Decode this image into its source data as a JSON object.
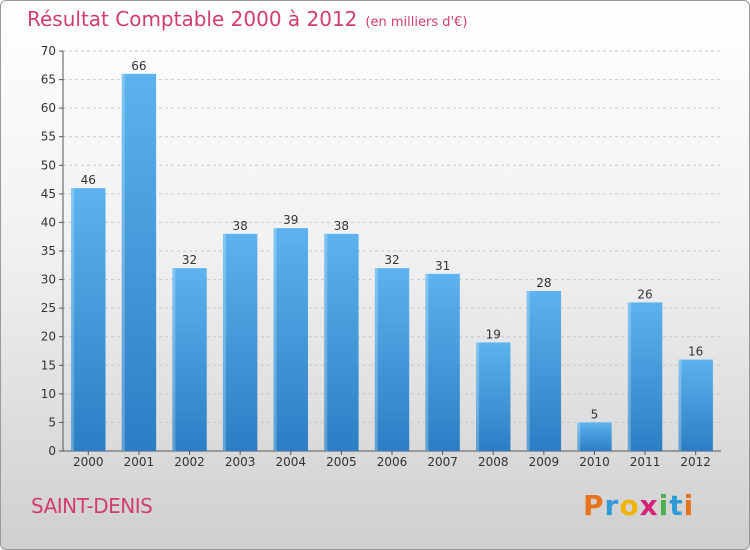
{
  "header": {
    "title": "Résultat Comptable 2000 à 2012",
    "subtitle": "(en milliers d'€)"
  },
  "footer": {
    "commune": "SAINT-DENIS",
    "logo_text": "Proxiti",
    "logo_colors": [
      "#e8731e",
      "#2e9bd6",
      "#f2b400",
      "#d4237a",
      "#4caf50",
      "#2e9bd6",
      "#e8731e"
    ]
  },
  "chart_data": {
    "type": "bar",
    "title": "Résultat Comptable 2000 à 2012",
    "xlabel": "",
    "ylabel": "",
    "categories": [
      "2000",
      "2001",
      "2002",
      "2003",
      "2004",
      "2005",
      "2006",
      "2007",
      "2008",
      "2009",
      "2010",
      "2011",
      "2012"
    ],
    "values": [
      46,
      66,
      32,
      38,
      39,
      38,
      32,
      31,
      19,
      28,
      5,
      26,
      16
    ],
    "ylim": [
      0,
      70
    ],
    "yticks": [
      0,
      5,
      10,
      15,
      20,
      25,
      30,
      35,
      40,
      45,
      50,
      55,
      60,
      65,
      70
    ],
    "grid": true,
    "bar_color": "#3a95dc",
    "bar_color_light": "#5cb3ee",
    "bar_color_dark": "#2b7ec4"
  }
}
